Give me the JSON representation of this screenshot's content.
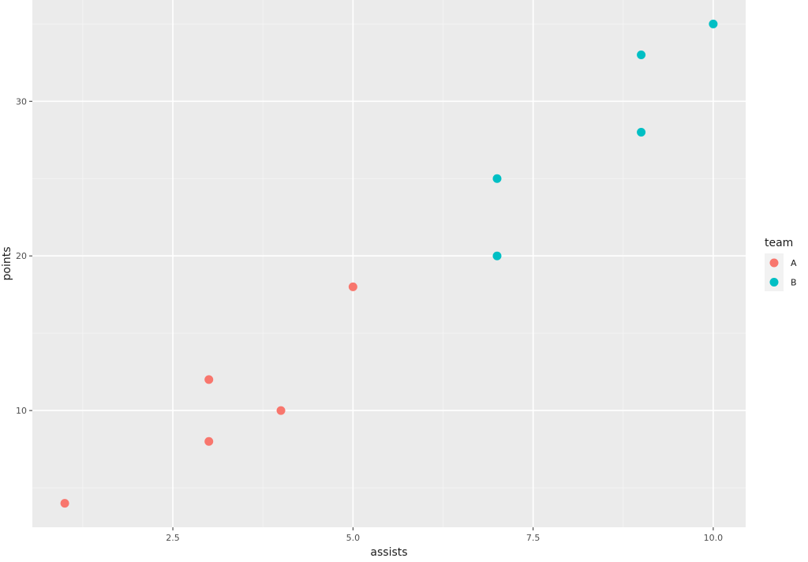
{
  "chart_data": {
    "type": "scatter",
    "title": "",
    "xlabel": "assists",
    "ylabel": "points",
    "xlim": [
      0.55,
      10.45
    ],
    "ylim": [
      2.45,
      36.55
    ],
    "x_ticks": [
      2.5,
      5.0,
      7.5,
      10.0
    ],
    "x_tick_labels": [
      "2.5",
      "5.0",
      "7.5",
      "10.0"
    ],
    "y_ticks": [
      10,
      20,
      30
    ],
    "y_tick_labels": [
      "10",
      "20",
      "30"
    ],
    "grid": true,
    "legend_position": "right",
    "legend_title": "team",
    "series": [
      {
        "name": "A",
        "color": "#F8766D",
        "points": [
          {
            "x": 1,
            "y": 4
          },
          {
            "x": 3,
            "y": 8
          },
          {
            "x": 3,
            "y": 12
          },
          {
            "x": 4,
            "y": 10
          },
          {
            "x": 5,
            "y": 18
          }
        ]
      },
      {
        "name": "B",
        "color": "#00BFC4",
        "points": [
          {
            "x": 7,
            "y": 20
          },
          {
            "x": 7,
            "y": 25
          },
          {
            "x": 9,
            "y": 28
          },
          {
            "x": 9,
            "y": 33
          },
          {
            "x": 10,
            "y": 35
          }
        ]
      }
    ]
  },
  "style": {
    "panel_bg": "#EBEBEB",
    "grid_major": "#FFFFFF",
    "grid_minor": "#F5F5F5",
    "tick_color": "#333333"
  }
}
